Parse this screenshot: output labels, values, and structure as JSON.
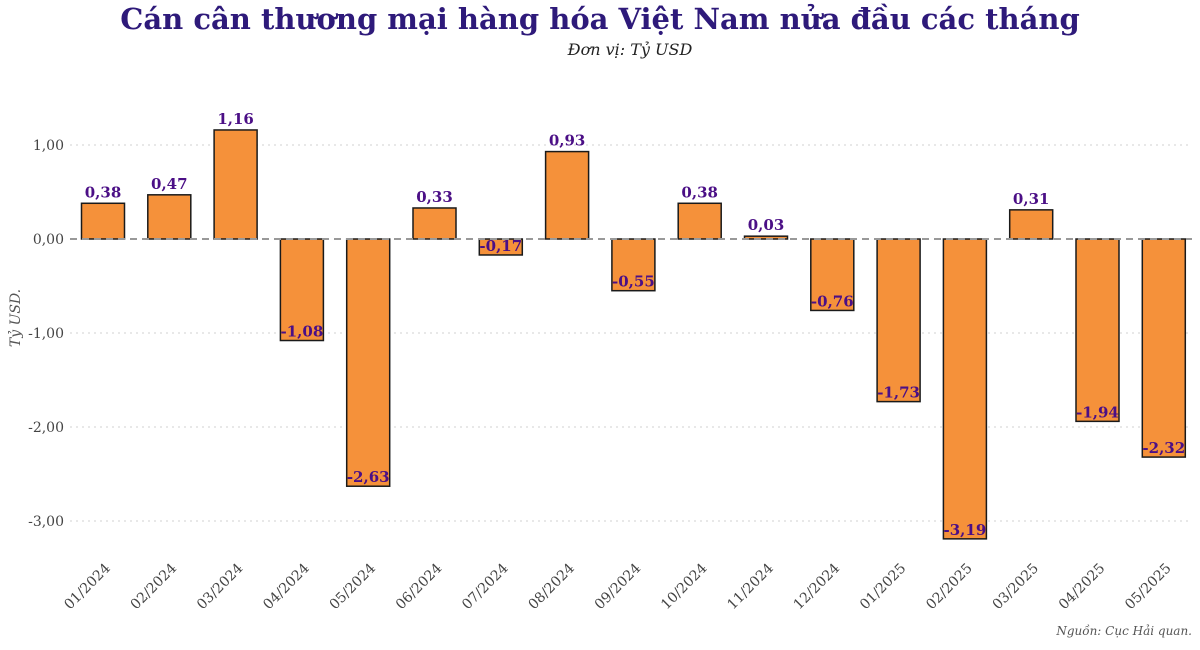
{
  "title": "Cán cân thương mại hàng hóa Việt Nam nửa đầu các tháng",
  "subtitle": "Đơn vị: Tỷ USD",
  "source": "Nguồn: Cục Hải quan.",
  "colors": {
    "bar_fill": "#f5913a",
    "bar_stroke": "#1a1a1a",
    "label": "#4b0f86",
    "title": "#2e1a7a",
    "zero_line": "#999999",
    "grid": "#d0d0d0"
  },
  "chart_data": {
    "type": "bar",
    "title": "Cán cân thương mại hàng hóa Việt Nam nửa đầu các tháng",
    "subtitle": "Đơn vị: Tỷ USD",
    "ylabel": "Tỷ USD.",
    "xlabel": "",
    "ylim": [
      -3.4,
      1.35
    ],
    "yticks": [
      1,
      0,
      -1,
      -2,
      -3
    ],
    "ytick_labels": [
      "1,00",
      "0,00",
      "-1,00",
      "-2,00",
      "-3,00"
    ],
    "grid": true,
    "categories": [
      "01/2024",
      "02/2024",
      "03/2024",
      "04/2024",
      "05/2024",
      "06/2024",
      "07/2024",
      "08/2024",
      "09/2024",
      "10/2024",
      "11/2024",
      "12/2024",
      "01/2025",
      "02/2025",
      "03/2025",
      "04/2025",
      "05/2025"
    ],
    "values": [
      0.38,
      0.47,
      1.16,
      -1.08,
      -2.63,
      0.33,
      -0.17,
      0.93,
      -0.55,
      0.38,
      0.03,
      -0.76,
      -1.73,
      -3.19,
      0.31,
      -1.94,
      -2.32
    ],
    "value_labels": [
      "0,38",
      "0,47",
      "1,16",
      "-1,08",
      "-2,63",
      "0,33",
      "-0,17",
      "0,93",
      "-0,55",
      "0,38",
      "0,03",
      "-0,76",
      "-1,73",
      "-3,19",
      "0,31",
      "-1,94",
      "-2,32"
    ]
  }
}
